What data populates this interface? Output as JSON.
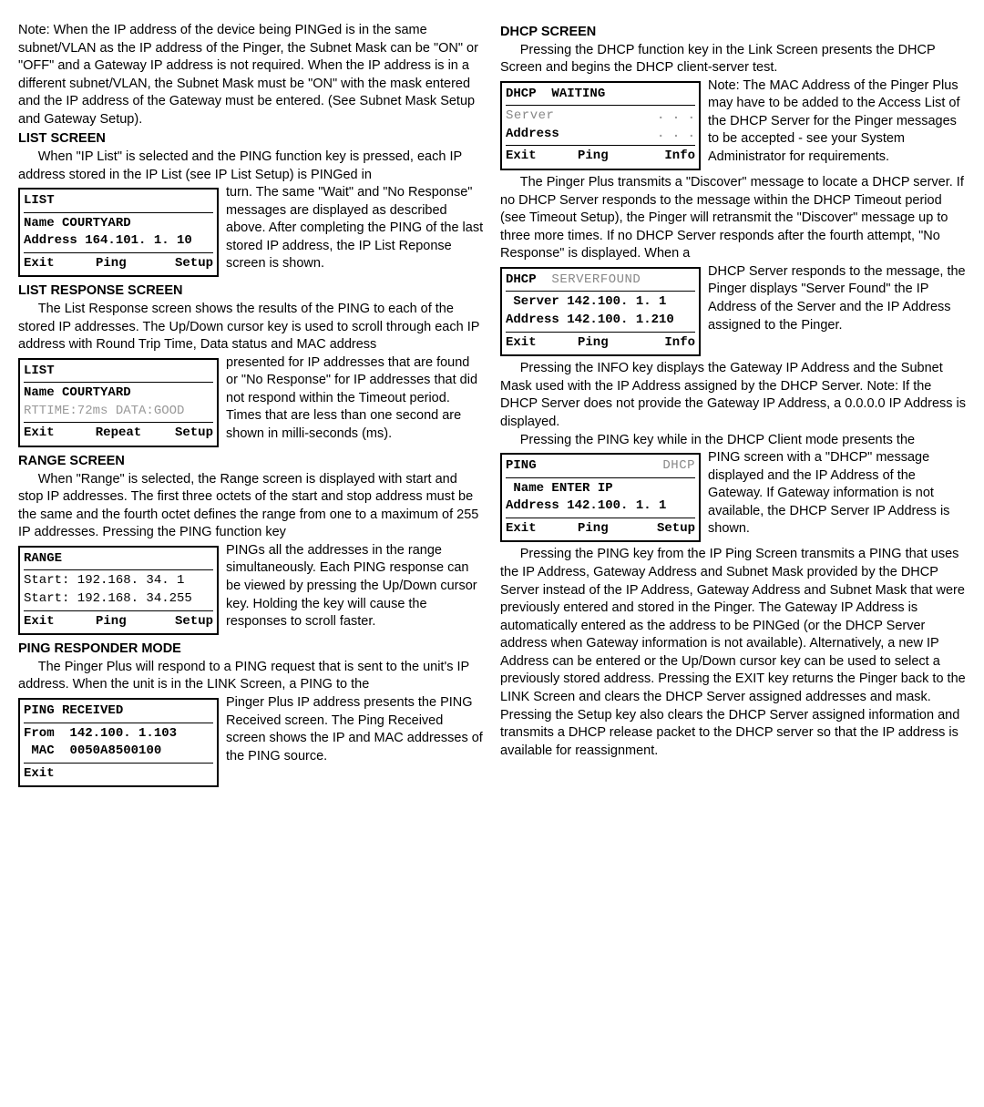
{
  "col1": {
    "note_text": "Note: When the IP address of the device being PINGed is in the same subnet/VLAN as the IP address of the Pinger, the Subnet Mask can be \"ON\" or \"OFF\" and a Gateway IP address is not required. When the IP address is in a different subnet/VLAN, the Subnet Mask must be \"ON\" with the mask entered and the IP address of the Gateway must be entered. (See Subnet Mask Setup and Gateway Setup).",
    "list_screen": {
      "heading": "LIST SCREEN",
      "p1": "When \"IP List\" is selected and the PING function key is pressed, each IP address stored in the IP List (see IP List Setup) is PINGed in",
      "lcd": {
        "title": "LIST",
        "line1_label": "Name",
        "line1_value": "COURTYARD",
        "line2_label": "Address",
        "line2_value": "164.101.  1. 10",
        "f1": "Exit",
        "f2": "Ping",
        "f3": "Setup"
      },
      "p2": "turn. The same \"Wait\" and \"No Response\" messages are displayed as described above. After completing the PING of the last stored IP address, the IP List Reponse screen is shown."
    },
    "list_response": {
      "heading": "LIST RESPONSE SCREEN",
      "p1": "The List Response screen shows the results of the PING to each of the stored IP addresses. The Up/Down cursor key is used to scroll through each IP address with Round Trip Time, Data status and MAC address",
      "lcd": {
        "title": "LIST",
        "line1_label": "Name",
        "line1_value": "COURTYARD",
        "line2": "RTTIME:72ms  DATA:GOOD",
        "f1": "Exit",
        "f2": "Repeat",
        "f3": "Setup"
      },
      "p2": "presented for IP addresses that are found or \"No Response\" for IP addresses that did not respond within the Timeout period. Times that are less than one second are shown in milli-seconds (ms)."
    },
    "range": {
      "heading": "RANGE SCREEN",
      "p1": "When \"Range\" is selected, the Range screen is displayed with start and stop IP addresses. The first three octets of the start and stop address must be the same and the fourth octet defines the range from one to a maximum of 255 IP addresses. Pressing the PING function key",
      "lcd": {
        "title": "RANGE",
        "line1": "Start: 192.168. 34.  1",
        "line2": "Start: 192.168. 34.255",
        "f1": "Exit",
        "f2": "Ping",
        "f3": "Setup"
      },
      "p2": "PINGs all the addresses in the range simultaneously. Each PING response can be viewed by pressing the Up/Down cursor key. Holding the key will cause the responses to scroll faster."
    },
    "responder": {
      "heading": "PING RESPONDER MODE",
      "p1": "The Pinger Plus will respond to a PING request that is sent to the unit's IP address. When the unit is in the LINK Screen, a PING to the",
      "lcd": {
        "title": "PING RECEIVED",
        "line1_label": "From",
        "line1_value": "142.100.  1.103",
        "line2_label": "MAC",
        "line2_value": "0050A8500100",
        "f1": "Exit"
      },
      "p2": "Pinger Plus IP address presents the PING Received screen. The Ping Received screen shows the IP and MAC addresses of the PING source."
    }
  },
  "col2": {
    "dhcp": {
      "heading": "DHCP SCREEN",
      "p1": "Pressing the DHCP function key in the Link Screen presents the DHCP Screen and begins the DHCP client-server test.",
      "lcd1": {
        "title_a": "DHCP",
        "title_b": "WAITING",
        "line1_label": "Server",
        "line1_value": ".   .   .",
        "line2_label": "Address",
        "line2_value": ".   .   .",
        "f1": "Exit",
        "f2": "Ping",
        "f3": "Info"
      },
      "p2": "Note: The MAC Address of the Pinger Plus may have to be added to the Access List of the DHCP Server for the Pinger messages to be accepted - see your System Administrator for requirements.",
      "p3": "The Pinger Plus transmits a \"Discover\" message to locate a DHCP server. If no DHCP Server responds to the message within the DHCP Timeout period (see Timeout Setup), the Pinger will retransmit the \"Discover\" message up to three more times. If no DHCP Server responds after the fourth attempt, \"No Response\" is displayed. When a",
      "lcd2": {
        "title_a": "DHCP",
        "title_b": "SERVERFOUND",
        "line1_label": "Server",
        "line1_value": "142.100.  1.  1",
        "line2_label": "Address",
        "line2_value": "142.100.  1.210",
        "f1": "Exit",
        "f2": "Ping",
        "f3": "Info"
      },
      "p4": "DHCP Server responds to the message, the Pinger displays \"Server Found\" the IP Address of the Server and the IP Address assigned to the Pinger.",
      "p5": "Pressing the INFO key displays the Gateway IP Address and the Subnet Mask used with the IP Address assigned by the DHCP Server. Note: If the DHCP Server does not provide the Gateway IP Address, a 0.0.0.0 IP Address is displayed.",
      "p6": "Pressing the PING key while in the DHCP Client mode presents the",
      "lcd3": {
        "title_a": "PING",
        "title_b": "DHCP",
        "line1_label": "Name",
        "line1_value": "ENTER IP",
        "line2_label": "Address",
        "line2_value": "142.100.  1.  1",
        "f1": "Exit",
        "f2": "Ping",
        "f3": "Setup"
      },
      "p7": "PING screen with a \"DHCP\" message displayed and the IP Address of the Gateway. If Gateway information is not available, the DHCP Server IP Address is shown.",
      "p8": "Pressing the PING key from the IP Ping Screen transmits a PING that uses the IP Address, Gateway Address and Subnet Mask provided by the DHCP Server instead of the IP Address, Gateway Address and Subnet Mask that were previously entered and stored in the Pinger. The Gateway IP Address is automatically entered as the address to be PINGed (or the DHCP Server address when Gateway information is not available). Alternatively, a new IP Address can be entered or  the Up/Down cursor key can be used to select a previously stored address. Pressing the EXIT key returns the Pinger back to the LINK Screen and clears the DHCP Server assigned addresses and mask. Pressing the Setup key also clears the DHCP Server assigned information and transmits a DHCP release packet to the DHCP server so that the IP address is available for reassignment."
    }
  }
}
